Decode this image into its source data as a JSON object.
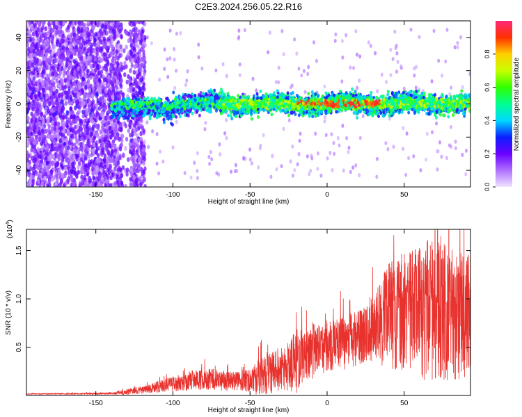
{
  "title": "C2E3.2024.256.05.22.R16",
  "chart_data": [
    {
      "type": "heatmap",
      "xlabel": "Height of straight line (km)",
      "ylabel": "Frequency (Hz)",
      "xlim": [
        -195,
        93
      ],
      "ylim": [
        -50,
        50
      ],
      "xticks": [
        -150,
        -100,
        -50,
        0,
        50
      ],
      "yticks": [
        -40,
        -20,
        0,
        20,
        40
      ],
      "colorbar": {
        "label": "Normalized spectral amplitude",
        "range": [
          0,
          1
        ],
        "ticks": [
          0.0,
          0.2,
          0.4,
          0.6,
          0.8
        ]
      },
      "features": {
        "scattered_noise_x_range": [
          -195,
          -118
        ],
        "band_center_hz": 0,
        "band_half_width_hz": 8,
        "peak_amplitude_x_range": [
          -20,
          35
        ],
        "peak_amplitude": 0.95
      }
    },
    {
      "type": "line",
      "xlabel": "Height of straight line (km)",
      "ylabel": "SNR (10 * v/v)",
      "yscale_label": "(x10",
      "yscale_exponent": "4",
      "xlim": [
        -195,
        93
      ],
      "ylim": [
        0,
        1.72
      ],
      "xticks": [
        -150,
        -100,
        -50,
        0,
        50
      ],
      "yticks": [
        0.5,
        1.0,
        1.5
      ],
      "color": "#e8322e",
      "envelope": {
        "x": [
          -195,
          -140,
          -130,
          -118,
          -110,
          -100,
          -90,
          -80,
          -70,
          -60,
          -50,
          -45,
          -40,
          -35,
          -30,
          -25,
          -20,
          -15,
          -10,
          -5,
          0,
          5,
          10,
          15,
          20,
          25,
          30,
          35,
          40,
          50,
          60,
          70,
          80,
          93
        ],
        "mean": [
          0.015,
          0.02,
          0.035,
          0.06,
          0.09,
          0.12,
          0.15,
          0.17,
          0.16,
          0.15,
          0.16,
          0.18,
          0.22,
          0.24,
          0.26,
          0.3,
          0.36,
          0.42,
          0.46,
          0.48,
          0.5,
          0.54,
          0.56,
          0.58,
          0.6,
          0.64,
          0.7,
          0.76,
          0.82,
          0.86,
          0.88,
          0.86,
          0.85,
          0.83
        ],
        "amplitude": [
          0.005,
          0.01,
          0.03,
          0.04,
          0.06,
          0.08,
          0.1,
          0.11,
          0.11,
          0.1,
          0.12,
          0.18,
          0.25,
          0.22,
          0.2,
          0.25,
          0.35,
          0.25,
          0.3,
          0.25,
          0.3,
          0.25,
          0.3,
          0.28,
          0.3,
          0.3,
          0.35,
          0.45,
          0.55,
          0.6,
          0.7,
          0.75,
          0.7,
          0.65
        ]
      }
    }
  ]
}
